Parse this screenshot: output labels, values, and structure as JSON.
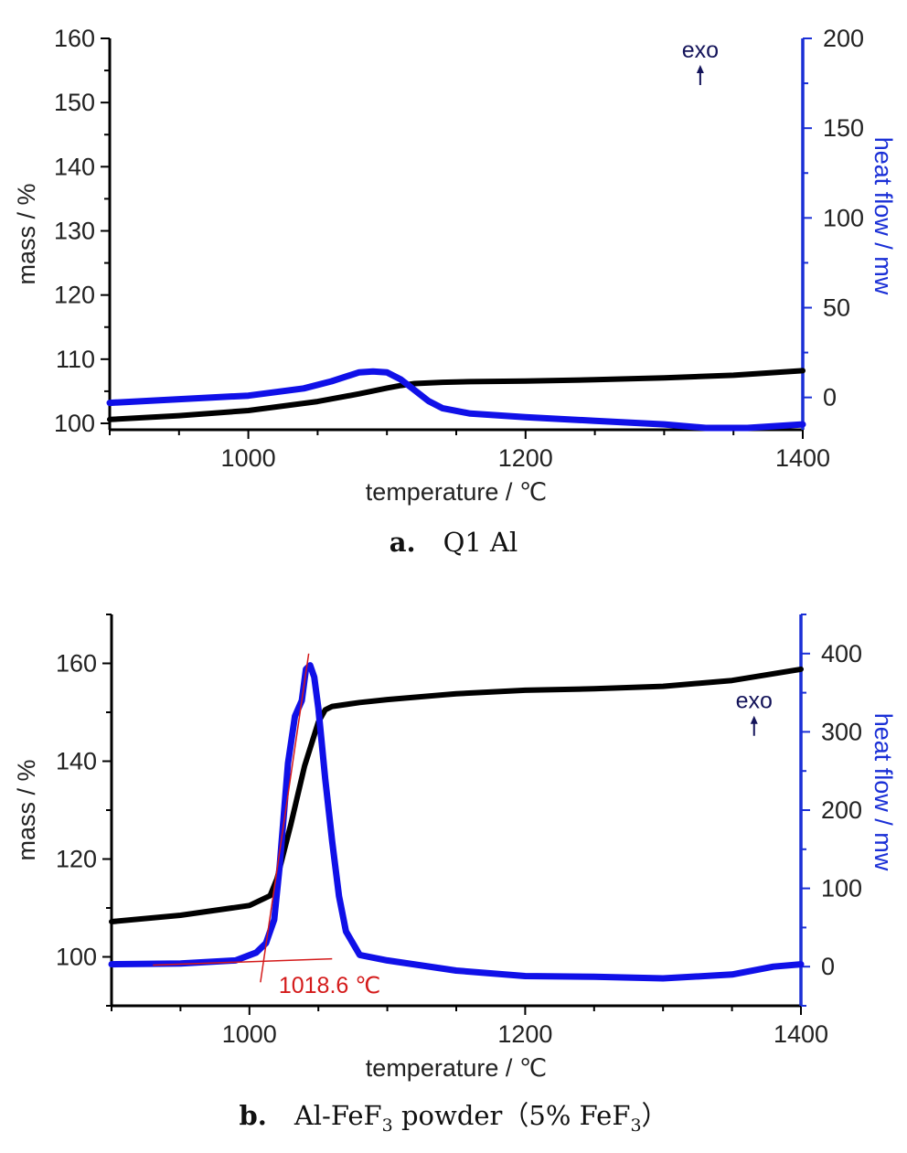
{
  "colors": {
    "mass": "#000000",
    "heat": "#1010e8",
    "right_axis": "#1a2fd6",
    "onset": "#d41a1a",
    "text": "#222222"
  },
  "chart_data": [
    {
      "type": "line",
      "panel_caption_label": "a.",
      "panel_caption_text": "Q1 Al",
      "xlabel": "temperature / ℃",
      "ylabel_left": "mass / %",
      "ylabel_right": "heat flow / mw",
      "xlim": [
        900,
        1400
      ],
      "ylim_left": [
        99,
        160
      ],
      "ylim_right": [
        -18,
        200
      ],
      "x_ticks": [
        1000,
        1200,
        1400
      ],
      "y_left_ticks": [
        100,
        110,
        120,
        130,
        140,
        150,
        160
      ],
      "y_right_ticks": [
        0,
        50,
        100,
        150,
        200
      ],
      "annotation": "exo",
      "annotation_pos": {
        "x": 1330,
        "y_left": 157
      },
      "series": [
        {
          "axis": "left",
          "color_key": "mass",
          "x": [
            900,
            950,
            1000,
            1050,
            1080,
            1100,
            1110,
            1120,
            1140,
            1160,
            1200,
            1250,
            1300,
            1350,
            1400
          ],
          "y": [
            100.6,
            101.2,
            102.0,
            103.4,
            104.6,
            105.5,
            105.9,
            106.2,
            106.4,
            106.5,
            106.6,
            106.8,
            107.1,
            107.5,
            108.2
          ]
        },
        {
          "axis": "right",
          "color_key": "heat",
          "x": [
            900,
            950,
            1000,
            1040,
            1060,
            1080,
            1090,
            1100,
            1110,
            1120,
            1130,
            1140,
            1160,
            1200,
            1250,
            1300,
            1330,
            1360,
            1400
          ],
          "y": [
            -3,
            -1,
            1,
            5,
            9,
            14,
            14.5,
            14,
            10,
            4,
            -2,
            -6,
            -9,
            -11,
            -13,
            -15,
            -17,
            -17,
            -15
          ]
        }
      ]
    },
    {
      "type": "line",
      "panel_caption_label": "b.",
      "panel_caption_text_pre": "Al-FeF",
      "panel_caption_sub1": "3",
      "panel_caption_text_mid": " powder（5% FeF",
      "panel_caption_sub2": "3",
      "panel_caption_text_post": "）",
      "xlabel": "temperature / ℃",
      "ylabel_left": "mass / %",
      "ylabel_right": "heat flow / mw",
      "xlim": [
        900,
        1400
      ],
      "ylim_left": [
        90,
        170
      ],
      "ylim_right": [
        -50,
        450
      ],
      "x_ticks": [
        1000,
        1200,
        1400
      ],
      "y_left_ticks": [
        100,
        120,
        140,
        160
      ],
      "y_right_ticks": [
        0,
        100,
        200,
        300,
        400
      ],
      "annotation": "exo",
      "annotation_pos": {
        "x": 1370,
        "y_right": 330
      },
      "onset_label": "1018.6 ℃",
      "onset_x": 1018.6,
      "series": [
        {
          "axis": "left",
          "color_key": "mass",
          "x": [
            900,
            950,
            1000,
            1015,
            1020,
            1030,
            1040,
            1050,
            1055,
            1060,
            1080,
            1100,
            1150,
            1200,
            1250,
            1300,
            1350,
            1400
          ],
          "y": [
            107.2,
            108.5,
            110.5,
            112.5,
            116,
            127,
            139,
            148,
            150.5,
            151.2,
            152,
            152.6,
            153.8,
            154.5,
            154.8,
            155.3,
            156.5,
            158.8
          ]
        },
        {
          "axis": "right",
          "color_key": "heat",
          "x": [
            900,
            950,
            990,
            1005,
            1012,
            1018,
            1022,
            1028,
            1033,
            1038,
            1041,
            1044,
            1047,
            1050,
            1055,
            1060,
            1065,
            1070,
            1080,
            1100,
            1150,
            1200,
            1250,
            1300,
            1350,
            1380,
            1400
          ],
          "y": [
            3,
            4,
            8,
            18,
            30,
            60,
            130,
            260,
            320,
            340,
            380,
            385,
            370,
            330,
            240,
            160,
            90,
            45,
            15,
            8,
            -5,
            -12,
            -13,
            -15,
            -10,
            0,
            3
          ]
        }
      ],
      "tangent_lines": [
        {
          "x": [
            930,
            1060
          ],
          "y_right": [
            2,
            10
          ]
        },
        {
          "x": [
            1008,
            1043
          ],
          "y_right": [
            -20,
            400
          ]
        }
      ]
    }
  ]
}
